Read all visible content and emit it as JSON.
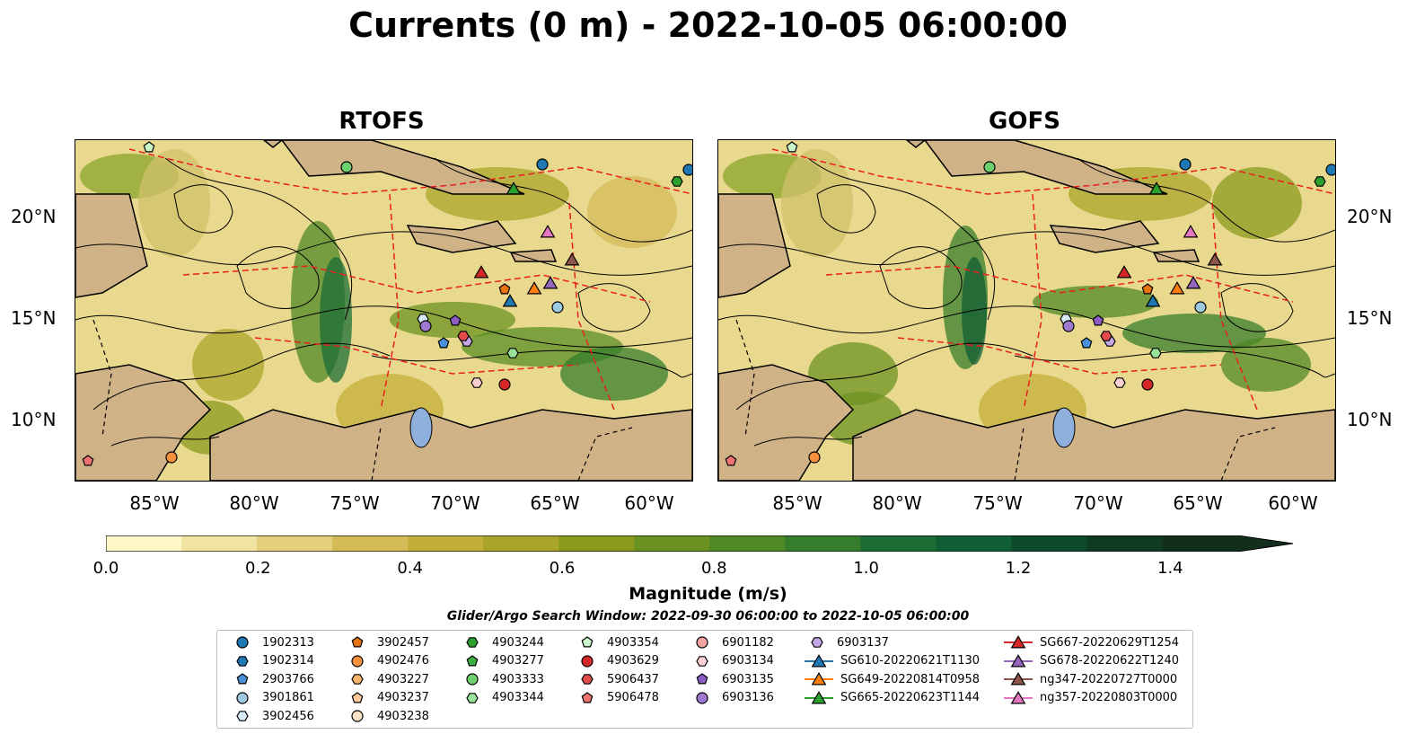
{
  "title": "Currents (0 m) - 2022-10-05 06:00:00",
  "panels": [
    {
      "title": "RTOFS"
    },
    {
      "title": "GOFS"
    }
  ],
  "axes": {
    "lat_labels": [
      "20°N",
      "15°N",
      "10°N"
    ],
    "lon_labels": [
      "85°W",
      "80°W",
      "75°W",
      "70°W",
      "65°W",
      "60°W"
    ]
  },
  "colorbar": {
    "label": "Magnitude (m/s)",
    "ticks": [
      "0.0",
      "0.2",
      "0.4",
      "0.6",
      "0.8",
      "1.0",
      "1.2",
      "1.4"
    ],
    "range": [
      0.0,
      1.5
    ],
    "colors": [
      "#fdf7c6",
      "#f1e4a1",
      "#e3cf7c",
      "#d4bb58",
      "#c4ae3a",
      "#a9a42a",
      "#8a9b1e",
      "#6b9220",
      "#4f8826",
      "#357d2c",
      "#1c6d35",
      "#0f5e34",
      "#0d4b2c",
      "#0f3b23",
      "#122e1c"
    ]
  },
  "search_window": "Glider/Argo Search Window: 2022-09-30 06:00:00 to 2022-10-05 06:00:00",
  "legend": [
    {
      "label": "1902313",
      "marker": "circle",
      "color": "#1f77b4"
    },
    {
      "label": "1902314",
      "marker": "hexagon",
      "color": "#1f77b4"
    },
    {
      "label": "2903766",
      "marker": "pentagon",
      "color": "#4a90d9"
    },
    {
      "label": "3901861",
      "marker": "circle",
      "color": "#9ecae1"
    },
    {
      "label": "3902456",
      "marker": "hexagon",
      "color": "#d6eaf8"
    },
    {
      "label": "3902457",
      "marker": "pentagon",
      "color": "#e6730f"
    },
    {
      "label": "4902476",
      "marker": "circle",
      "color": "#f5903c"
    },
    {
      "label": "4903227",
      "marker": "hexagon",
      "color": "#f7b56b"
    },
    {
      "label": "4903237",
      "marker": "pentagon",
      "color": "#fcc99a"
    },
    {
      "label": "4903238",
      "marker": "circle",
      "color": "#fde3c6"
    },
    {
      "label": "4903244",
      "marker": "hexagon",
      "color": "#2ca02c"
    },
    {
      "label": "4903277",
      "marker": "pentagon",
      "color": "#3cb043"
    },
    {
      "label": "4903333",
      "marker": "circle",
      "color": "#6fcf6f"
    },
    {
      "label": "4903344",
      "marker": "hexagon",
      "color": "#9be39b"
    },
    {
      "label": "4903354",
      "marker": "pentagon",
      "color": "#ccf5cc"
    },
    {
      "label": "4903629",
      "marker": "circle",
      "color": "#d62728"
    },
    {
      "label": "5906437",
      "marker": "hexagon",
      "color": "#e34a4a"
    },
    {
      "label": "5906478",
      "marker": "pentagon",
      "color": "#ee7373"
    },
    {
      "label": "6901182",
      "marker": "circle",
      "color": "#f4a3a3"
    },
    {
      "label": "6903134",
      "marker": "hexagon",
      "color": "#fbd0d0"
    },
    {
      "label": "6903135",
      "marker": "pentagon",
      "color": "#8c5ec4"
    },
    {
      "label": "6903136",
      "marker": "circle",
      "color": "#a07ad2"
    },
    {
      "label": "6903137",
      "marker": "hexagon",
      "color": "#c3a7e6"
    },
    {
      "label": "SG610-20220621T1130",
      "marker": "triangle",
      "color": "#1f77b4"
    },
    {
      "label": "SG649-20220814T0958",
      "marker": "triangle",
      "color": "#ff7f0e"
    },
    {
      "label": "SG665-20220623T1144",
      "marker": "triangle",
      "color": "#2ca02c"
    },
    {
      "label": "SG667-20220629T1254",
      "marker": "triangle",
      "color": "#d62728"
    },
    {
      "label": "SG678-20220622T1240",
      "marker": "triangle",
      "color": "#9467bd"
    },
    {
      "label": "ng347-20220727T0000",
      "marker": "triangle",
      "color": "#8c564b"
    },
    {
      "label": "ng357-20220803T0000",
      "marker": "triangle",
      "color": "#e377c2"
    }
  ]
}
